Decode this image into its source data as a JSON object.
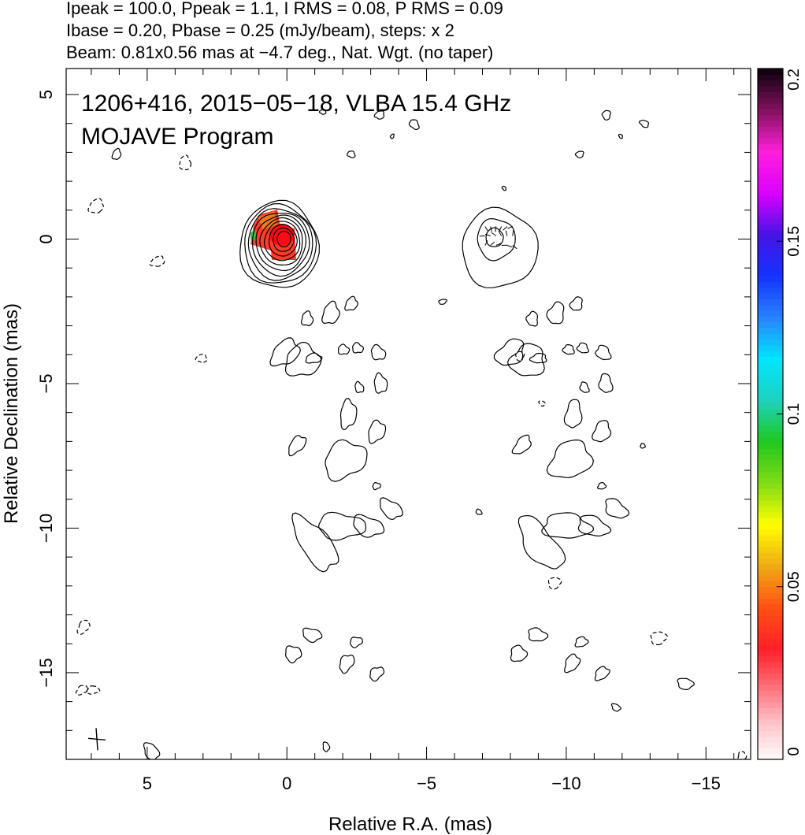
{
  "header": {
    "line1": "Ipeak = 100.0, Ppeak = 1.1, I RMS = 0.08, P RMS = 0.09",
    "line2": "Ibase = 0.20, Pbase = 0.25 (mJy/beam), steps: x 2",
    "line3": "Beam: 0.81x0.56 mas at −4.7 deg., Nat. Wgt. (no taper)"
  },
  "chart_data": {
    "type": "heatmap",
    "title": "1206+416, 2015−05−18, VLBA 15.4 GHz",
    "subtitle": "MOJAVE Program",
    "xlabel": "Relative R.A. (mas)",
    "ylabel": "Relative Declination (mas)",
    "xlim": [
      7.9,
      -16.6
    ],
    "ylim": [
      -18.0,
      5.9
    ],
    "x_ticks": [
      5,
      0,
      -5,
      -10,
      -15
    ],
    "x_tick_labels": [
      "5",
      "0",
      "−5",
      "−10",
      "−15"
    ],
    "y_ticks": [
      5,
      0,
      -5,
      -10,
      -15
    ],
    "y_tick_labels": [
      "5",
      "0",
      "−5",
      "−10",
      "−15"
    ],
    "colorbar": {
      "range": [
        0,
        0.2
      ],
      "ticks": [
        0,
        0.05,
        0.1,
        0.15,
        0.2
      ],
      "tick_labels": [
        "0",
        "0.05",
        "0.1",
        "0.15",
        "0.2"
      ]
    },
    "images": [
      {
        "name": "total intensity",
        "center": [
          0,
          0
        ],
        "levels": 10,
        "color_fill": true
      },
      {
        "name": "polarization",
        "center": [
          -7.6,
          0
        ],
        "levels": 3,
        "color_fill": false
      }
    ],
    "beam": {
      "major": 0.81,
      "minor": 0.56,
      "pa": -4.7
    }
  }
}
